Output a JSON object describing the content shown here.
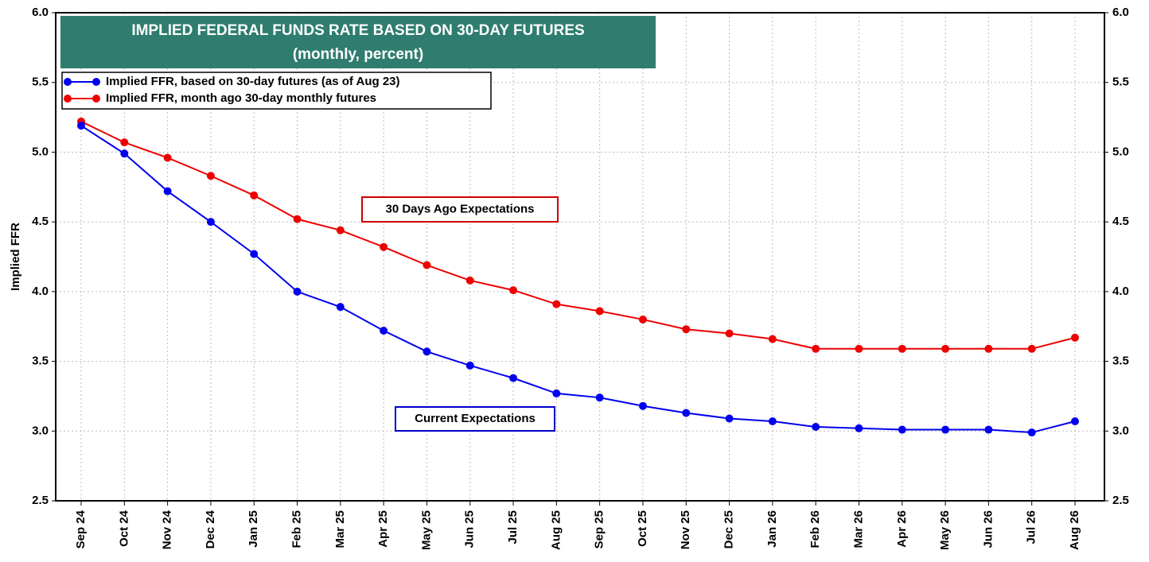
{
  "chart_data": {
    "type": "line",
    "title": "IMPLIED FEDERAL FUNDS RATE BASED ON 30-DAY FUTURES",
    "subtitle": "(monthly, percent)",
    "y_label": "Implied FFR",
    "categories": [
      "Sep 24",
      "Oct 24",
      "Nov 24",
      "Dec 24",
      "Jan 25",
      "Feb 25",
      "Mar 25",
      "Apr 25",
      "May 25",
      "Jun 25",
      "Jul 25",
      "Aug 25",
      "Sep 25",
      "Oct 25",
      "Nov 25",
      "Dec 25",
      "Jan 26",
      "Feb 26",
      "Mar 26",
      "Apr 26",
      "May 26",
      "Jun 26",
      "Jul 26",
      "Aug 26"
    ],
    "series": [
      {
        "name": "Implied FFR, based on 30-day futures (as of Aug 23)",
        "color": "#0000ee",
        "values": [
          5.19,
          4.99,
          4.72,
          4.5,
          4.27,
          4.0,
          3.89,
          3.72,
          3.57,
          3.47,
          3.38,
          3.27,
          3.24,
          3.18,
          3.13,
          3.09,
          3.07,
          3.03,
          3.02,
          3.01,
          3.01,
          3.01,
          2.99,
          3.07
        ]
      },
      {
        "name": "Implied FFR, month ago 30-day monthly futures",
        "color": "#ee0000",
        "values": [
          5.22,
          5.07,
          4.96,
          4.83,
          4.69,
          4.52,
          4.44,
          4.32,
          4.19,
          4.08,
          4.01,
          3.91,
          3.86,
          3.8,
          3.73,
          3.7,
          3.66,
          3.59,
          3.59,
          3.59,
          3.59,
          3.59,
          3.59,
          3.67
        ]
      }
    ],
    "annotations": [
      {
        "text": "30 Days Ago Expectations",
        "color": "#cc0000"
      },
      {
        "text": "Current Expectations",
        "color": "#0000cc"
      }
    ],
    "ylim": [
      2.5,
      6.0
    ],
    "yticks": [
      2.5,
      {
        "value": 3,
        "label": "3.0"
      },
      3.5,
      {
        "value": 4,
        "label": "4.0"
      },
      4.5,
      {
        "value": 5,
        "label": "5.0"
      },
      5.5,
      {
        "value": 6,
        "label": "6.0"
      }
    ],
    "grid": true,
    "title_color": "#2e7d6e"
  }
}
